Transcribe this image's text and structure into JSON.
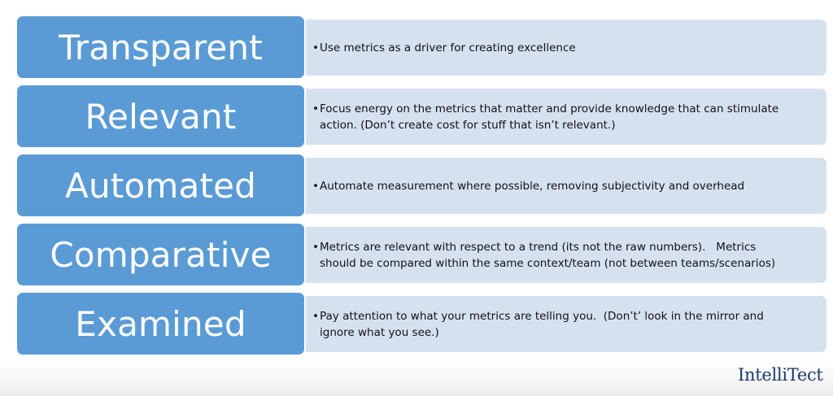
{
  "rows": [
    {
      "term": "Transparent",
      "lines": [
        "Use metrics as a driver for creating excellence"
      ]
    },
    {
      "term": "Relevant",
      "lines": [
        "Focus energy on the metrics that matter and provide knowledge that can stimulate",
        "action. (Don’t create cost for stuff that isn’t relevant.)"
      ]
    },
    {
      "term": "Automated",
      "lines": [
        "Automate measurement where possible, removing subjectivity and overhead"
      ]
    },
    {
      "term": "Comparative",
      "lines": [
        "Metrics are relevant with respect to a trend (its not the raw numbers).   Metrics",
        "should be compared within the same context/team (not between teams/scenarios)"
      ]
    },
    {
      "term": "Examined",
      "lines": [
        "Pay attention to what your metrics are telling you.  (Don’t’ look in the mirror and",
        "ignore what you see.)"
      ]
    }
  ],
  "bullet": "•",
  "logo": {
    "text": "IntelliTect"
  },
  "colors": {
    "term_box": "#5b9bd5",
    "desc_box": "#d6e1f0",
    "logo": "#1d3a6e"
  }
}
